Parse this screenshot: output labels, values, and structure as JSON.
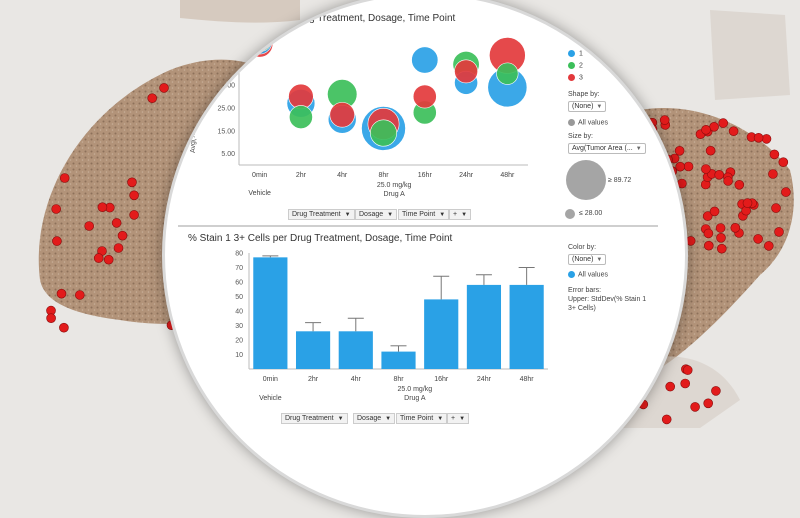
{
  "colors": {
    "c1": "#2aa1e6",
    "c2": "#3cbf5a",
    "c3": "#e3393c",
    "bar": "#2aa1e6",
    "tissue": "#9a7a5a",
    "dot": "#e21b1b"
  },
  "top_chart": {
    "title": "Drug Treatment, Dosage, Time Point",
    "legend_items": [
      "1",
      "2",
      "3"
    ],
    "shape_label": "Shape by:",
    "shape_value": "(None)",
    "all_values": "All values",
    "size_label": "Size by:",
    "size_value": "Avg(Tumor Area (...",
    "size_max": "≥ 89.72",
    "size_min": "≤ 28.00",
    "toolbar": [
      "Drug Treatment",
      "Dosage",
      "Time Point",
      "+"
    ]
  },
  "bottom_chart": {
    "title": "% Stain 1 3+ Cells per Drug Treatment, Dosage, Time Point",
    "color_label": "Color by:",
    "color_value": "(None)",
    "all_values": "All values",
    "error_bars_label": "Error bars:",
    "error_bars_text1": "Upper: StdDev(% Stain 1",
    "error_bars_text2": "3+ Cells)",
    "toolbar": [
      "Drug Treatment",
      "Dosage",
      "Time Point",
      "+"
    ]
  },
  "chart_data": [
    {
      "type": "scatter",
      "title": "Drug Treatment, Dosage, Time Point",
      "ylabel": "Avg(%",
      "categories": [
        "0min",
        "2hr",
        "4hr",
        "8hr",
        "16hr",
        "24hr",
        "48hr"
      ],
      "y_ticks": [
        "40",
        "35.00",
        "25.00",
        "15.00",
        "5.00"
      ],
      "group_labels": {
        "vehicle": "Vehicle",
        "dose": "25.0 mg/kg",
        "drug": "Drug A"
      },
      "legend": [
        "1",
        "2",
        "3"
      ],
      "series": [
        {
          "name": "1",
          "points": [
            {
              "x": "0min",
              "y": 54,
              "size": 0.4
            },
            {
              "x": "2hr",
              "y": 27,
              "size": 0.5
            },
            {
              "x": "4hr",
              "y": 20,
              "size": 0.5
            },
            {
              "x": "8hr",
              "y": 16,
              "size": 1.0
            },
            {
              "x": "16hr",
              "y": 46,
              "size": 0.45
            },
            {
              "x": "24hr",
              "y": 36,
              "size": 0.35
            },
            {
              "x": "48hr",
              "y": 34,
              "size": 0.85
            }
          ]
        },
        {
          "name": "2",
          "points": [
            {
              "x": "0min",
              "y": 55,
              "size": 0.4
            },
            {
              "x": "2hr",
              "y": 21,
              "size": 0.35
            },
            {
              "x": "4hr",
              "y": 31,
              "size": 0.55
            },
            {
              "x": "8hr",
              "y": 14,
              "size": 0.45
            },
            {
              "x": "16hr",
              "y": 23,
              "size": 0.35
            },
            {
              "x": "24hr",
              "y": 44,
              "size": 0.45
            },
            {
              "x": "48hr",
              "y": 40,
              "size": 0.3
            }
          ]
        },
        {
          "name": "3",
          "points": [
            {
              "x": "0min",
              "y": 53,
              "size": 0.45
            },
            {
              "x": "2hr",
              "y": 30,
              "size": 0.4
            },
            {
              "x": "4hr",
              "y": 22,
              "size": 0.4
            },
            {
              "x": "8hr",
              "y": 18,
              "size": 0.6
            },
            {
              "x": "16hr",
              "y": 30,
              "size": 0.35
            },
            {
              "x": "24hr",
              "y": 41,
              "size": 0.35
            },
            {
              "x": "48hr",
              "y": 48,
              "size": 0.75
            }
          ]
        }
      ]
    },
    {
      "type": "bar",
      "title": "% Stain 1 3+ Cells per Drug Treatment, Dosage, Time Point",
      "categories": [
        "0min",
        "2hr",
        "4hr",
        "8hr",
        "16hr",
        "24hr",
        "48hr"
      ],
      "values": [
        77,
        26,
        26,
        12,
        48,
        58,
        58
      ],
      "errors": [
        1,
        6,
        9,
        4,
        16,
        7,
        12
      ],
      "ylim": [
        0,
        80
      ],
      "y_ticks": [
        10,
        20,
        30,
        40,
        50,
        60,
        70,
        80
      ],
      "group_labels": {
        "vehicle": "Vehicle",
        "dose": "25.0 mg/kg",
        "drug": "Drug A"
      }
    }
  ]
}
